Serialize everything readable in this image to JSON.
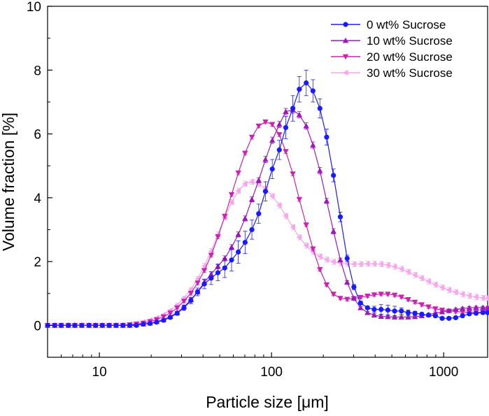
{
  "chart_data": {
    "type": "line",
    "title": "",
    "xlabel": "Particle size [μm]",
    "ylabel": "Volume fraction [%]",
    "xscale": "log",
    "xlim": [
      5,
      1800
    ],
    "ylim": [
      -1,
      10
    ],
    "x_ticks": [
      10,
      100,
      1000
    ],
    "x_tick_labels": [
      "10",
      "100",
      "1000"
    ],
    "y_ticks": [
      0,
      2,
      4,
      6,
      8,
      10
    ],
    "y_tick_labels": [
      "0",
      "2",
      "4",
      "6",
      "8",
      "10"
    ],
    "legend_position": "top-right",
    "x": [
      5.0,
      5.5,
      6.0,
      6.6,
      7.2,
      7.9,
      8.7,
      9.5,
      10.4,
      11.4,
      12.5,
      13.7,
      15.0,
      16.4,
      18.0,
      19.7,
      21.5,
      23.6,
      25.8,
      28.3,
      31.0,
      34.0,
      37.2,
      40.7,
      44.6,
      48.8,
      53.5,
      58.6,
      64.1,
      70.2,
      76.9,
      84.2,
      92.2,
      101,
      111,
      121,
      133,
      145,
      159,
      174,
      191,
      209,
      229,
      251,
      275,
      301,
      329,
      361,
      395,
      433,
      474,
      519,
      568,
      622,
      681,
      746,
      817,
      895,
      980,
      1073,
      1175,
      1287,
      1409,
      1543,
      1690,
      1800
    ],
    "series": [
      {
        "name": "0 wt% Sucrose",
        "color": "#1a1aff",
        "marker": "circle",
        "values": [
          0.0,
          0.0,
          0.0,
          0.0,
          0.0,
          0.0,
          0.0,
          0.0,
          0.0,
          0.0,
          0.0,
          0.0,
          0.0,
          0.0,
          0.04,
          0.06,
          0.1,
          0.16,
          0.25,
          0.38,
          0.55,
          0.78,
          1.05,
          1.3,
          1.48,
          1.65,
          1.8,
          2.05,
          2.3,
          2.6,
          3.0,
          3.5,
          4.2,
          4.9,
          5.5,
          6.2,
          6.8,
          7.4,
          7.6,
          7.35,
          6.8,
          5.9,
          4.7,
          3.4,
          2.1,
          1.2,
          0.7,
          0.55,
          0.5,
          0.5,
          0.48,
          0.45,
          0.45,
          0.4,
          0.38,
          0.35,
          0.32,
          0.3,
          0.22,
          0.22,
          0.24,
          0.3,
          0.36,
          0.38,
          0.4,
          0.4
        ],
        "errors": [
          0,
          0,
          0,
          0,
          0,
          0,
          0,
          0,
          0,
          0,
          0,
          0,
          0,
          0,
          0,
          0,
          0,
          0.03,
          0.05,
          0.06,
          0.08,
          0.1,
          0.12,
          0.15,
          0.2,
          0.25,
          0.3,
          0.35,
          0.35,
          0.35,
          0.3,
          0.3,
          0.3,
          0.3,
          0.3,
          0.35,
          0.4,
          0.4,
          0.4,
          0.35,
          0.3,
          0.25,
          0.2,
          0.15,
          0.1,
          0.08,
          0.06,
          0.05,
          0.1,
          0.15,
          0.15,
          0.15,
          0.1,
          0.08,
          0.06,
          0.05,
          0.05,
          0.05,
          0.04,
          0.04,
          0.04,
          0.04,
          0.04,
          0.04,
          0.04,
          0.04
        ]
      },
      {
        "name": "10 wt% Sucrose",
        "color": "#9a1ab8",
        "marker": "triangle-up",
        "values": [
          0.0,
          0.0,
          0.0,
          0.0,
          0.0,
          0.0,
          0.0,
          0.0,
          0.0,
          0.0,
          0.0,
          0.0,
          0.0,
          0.02,
          0.04,
          0.07,
          0.12,
          0.18,
          0.28,
          0.4,
          0.58,
          0.8,
          1.05,
          1.35,
          1.6,
          1.85,
          2.1,
          2.45,
          2.85,
          3.35,
          3.95,
          4.55,
          5.2,
          5.8,
          6.3,
          6.7,
          6.75,
          6.6,
          6.25,
          5.65,
          4.85,
          3.9,
          2.95,
          2.05,
          1.35,
          0.85,
          0.55,
          0.4,
          0.32,
          0.28,
          0.27,
          0.26,
          0.26,
          0.26,
          0.27,
          0.3,
          0.34,
          0.38,
          0.42,
          0.46,
          0.5,
          0.53,
          0.55,
          0.56,
          0.56,
          0.56
        ],
        "errors": [
          0,
          0,
          0,
          0,
          0,
          0,
          0,
          0,
          0,
          0,
          0,
          0,
          0,
          0,
          0,
          0,
          0,
          0,
          0.03,
          0.04,
          0.05,
          0.06,
          0.07,
          0.08,
          0.08,
          0.08,
          0.08,
          0.08,
          0.08,
          0.08,
          0.08,
          0.08,
          0.1,
          0.1,
          0.1,
          0.1,
          0.1,
          0.1,
          0.1,
          0.1,
          0.1,
          0.08,
          0.08,
          0.06,
          0.05,
          0.04,
          0.04,
          0.04,
          0.04,
          0.04,
          0.04,
          0.04,
          0.04,
          0.04,
          0.04,
          0.04,
          0.04,
          0.04,
          0.04,
          0.04,
          0.04,
          0.04,
          0.04,
          0.04,
          0.04,
          0.04
        ]
      },
      {
        "name": "20 wt% Sucrose",
        "color": "#cc22b0",
        "marker": "triangle-down",
        "values": [
          0.0,
          0.0,
          0.0,
          0.0,
          0.0,
          0.0,
          0.0,
          0.0,
          0.0,
          0.0,
          0.0,
          0.0,
          0.02,
          0.04,
          0.07,
          0.12,
          0.18,
          0.27,
          0.39,
          0.55,
          0.76,
          1.01,
          1.33,
          1.72,
          2.2,
          2.78,
          3.42,
          4.1,
          4.78,
          5.4,
          5.9,
          6.25,
          6.38,
          6.3,
          5.98,
          5.45,
          4.75,
          3.95,
          3.15,
          2.4,
          1.75,
          1.27,
          0.98,
          0.85,
          0.82,
          0.84,
          0.88,
          0.92,
          0.96,
          0.98,
          0.98,
          0.95,
          0.89,
          0.81,
          0.73,
          0.65,
          0.58,
          0.52,
          0.48,
          0.45,
          0.43,
          0.42,
          0.41,
          0.41,
          0.41,
          0.41
        ],
        "errors": [
          0,
          0,
          0,
          0,
          0,
          0,
          0,
          0,
          0,
          0,
          0,
          0,
          0,
          0,
          0,
          0,
          0,
          0,
          0.03,
          0.04,
          0.05,
          0.06,
          0.06,
          0.06,
          0.06,
          0.06,
          0.06,
          0.06,
          0.06,
          0.06,
          0.06,
          0.06,
          0.06,
          0.06,
          0.06,
          0.06,
          0.06,
          0.06,
          0.05,
          0.05,
          0.05,
          0.05,
          0.05,
          0.05,
          0.05,
          0.05,
          0.05,
          0.05,
          0.05,
          0.05,
          0.05,
          0.05,
          0.05,
          0.05,
          0.05,
          0.05,
          0.05,
          0.05,
          0.05,
          0.05,
          0.05,
          0.05,
          0.05,
          0.05,
          0.05,
          0.05
        ]
      },
      {
        "name": "30 wt% Sucrose",
        "color": "#f7a6ee",
        "marker": "triangle-left",
        "values": [
          0.0,
          0.0,
          0.0,
          0.0,
          0.0,
          0.0,
          0.0,
          0.0,
          0.0,
          0.0,
          0.01,
          0.02,
          0.04,
          0.07,
          0.11,
          0.17,
          0.24,
          0.34,
          0.47,
          0.64,
          0.86,
          1.13,
          1.46,
          1.86,
          2.33,
          2.85,
          3.38,
          3.86,
          4.22,
          4.44,
          4.5,
          4.44,
          4.28,
          4.05,
          3.76,
          3.43,
          3.08,
          2.76,
          2.5,
          2.3,
          2.16,
          2.06,
          1.99,
          1.95,
          1.93,
          1.92,
          1.92,
          1.93,
          1.93,
          1.92,
          1.89,
          1.84,
          1.77,
          1.68,
          1.58,
          1.48,
          1.38,
          1.28,
          1.19,
          1.11,
          1.04,
          0.98,
          0.93,
          0.89,
          0.86,
          0.85
        ],
        "errors": [
          0,
          0,
          0,
          0,
          0,
          0,
          0,
          0,
          0,
          0,
          0,
          0,
          0,
          0,
          0,
          0,
          0,
          0,
          0.03,
          0.04,
          0.05,
          0.06,
          0.07,
          0.08,
          0.08,
          0.08,
          0.08,
          0.08,
          0.08,
          0.08,
          0.08,
          0.08,
          0.08,
          0.08,
          0.08,
          0.08,
          0.08,
          0.08,
          0.08,
          0.08,
          0.08,
          0.08,
          0.08,
          0.08,
          0.08,
          0.08,
          0.08,
          0.08,
          0.08,
          0.08,
          0.08,
          0.08,
          0.08,
          0.08,
          0.08,
          0.08,
          0.08,
          0.08,
          0.08,
          0.08,
          0.08,
          0.08,
          0.08,
          0.08,
          0.08,
          0.08
        ]
      }
    ]
  }
}
